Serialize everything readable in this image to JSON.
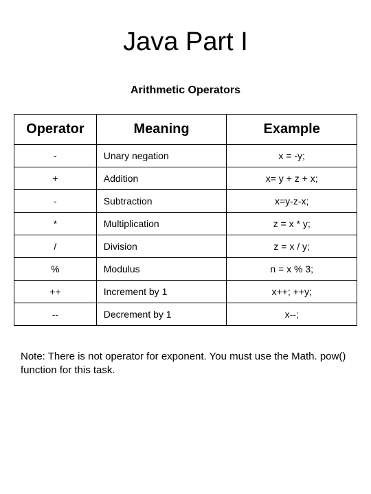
{
  "title": "Java Part I",
  "subtitle": "Arithmetic Operators",
  "table": {
    "columns": [
      "Operator",
      "Meaning",
      "Example"
    ],
    "column_align": [
      "center",
      "left",
      "center"
    ],
    "header_fontsize": 20,
    "header_fontweight": "bold",
    "cell_fontsize": 14,
    "border_color": "#000000",
    "rows": [
      {
        "operator": "-",
        "meaning": "Unary negation",
        "example": "x  = -y;"
      },
      {
        "operator": "+",
        "meaning": "Addition",
        "example": "x= y + z + x;"
      },
      {
        "operator": "-",
        "meaning": "Subtraction",
        "example": "x=y-z-x;"
      },
      {
        "operator": "*",
        "meaning": "Multiplication",
        "example": "z = x * y;"
      },
      {
        "operator": "/",
        "meaning": "Division",
        "example": "z = x / y;"
      },
      {
        "operator": "%",
        "meaning": "Modulus",
        "example": "n = x % 3;"
      },
      {
        "operator": "++",
        "meaning": "Increment by 1",
        "example": "x++; ++y;"
      },
      {
        "operator": "--",
        "meaning": "Decrement by 1",
        "example": "x--;"
      }
    ]
  },
  "note": "Note: There is not operator for exponent.  You must use the Math. pow() function for this task.",
  "colors": {
    "background": "#ffffff",
    "text": "#000000",
    "border": "#000000"
  },
  "typography": {
    "title_fontsize": 38,
    "subtitle_fontsize": 16,
    "note_fontsize": 15,
    "font_family": "Arial"
  }
}
